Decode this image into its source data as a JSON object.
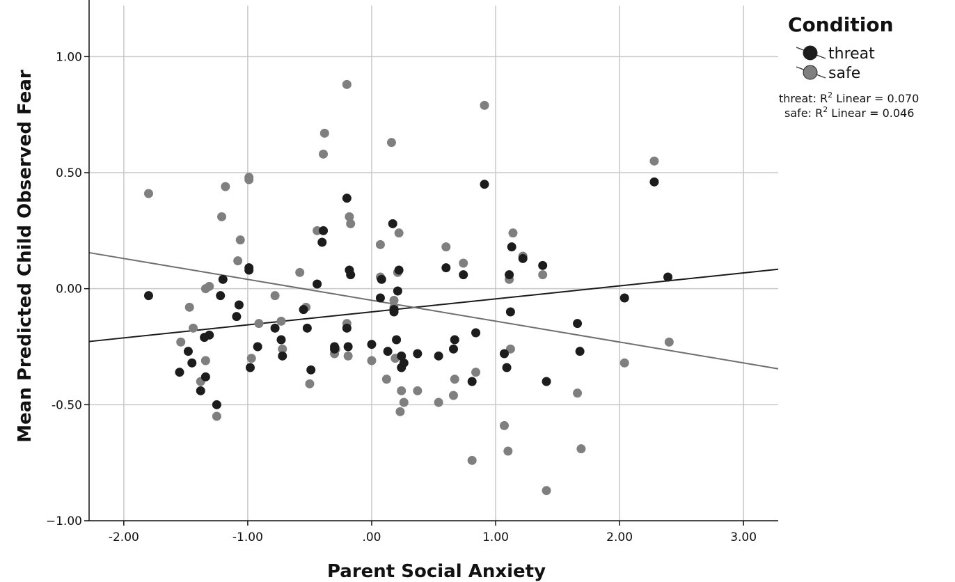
{
  "chart_data": {
    "type": "scatter",
    "title": "",
    "xlabel": "Parent Social Anxiety",
    "ylabel": "Mean Predicted Child Observed Fear",
    "xlim": [
      -2.28,
      3.28
    ],
    "ylim": [
      -1.0,
      1.22
    ],
    "xticks": [
      -2,
      -1,
      0,
      1,
      2,
      3
    ],
    "xtick_labels": [
      "-2.00",
      "-1.00",
      ".00",
      "1.00",
      "2.00",
      "3.00"
    ],
    "yticks": [
      -1,
      -0.5,
      0,
      0.5,
      1
    ],
    "ytick_labels": [
      "−1.00",
      "-0.50",
      "0.00",
      "0.50",
      "1.00"
    ],
    "grid": true,
    "legend": {
      "title": "Condition",
      "placement": "top-right",
      "notes": [
        {
          "series": "threat",
          "prefix": "threat: R",
          "sup": "2",
          "suffix": "  Linear = 0.070"
        },
        {
          "series": "safe",
          "prefix": "safe: R",
          "sup": "2",
          "suffix": "  Linear = 0.046"
        }
      ]
    },
    "series": [
      {
        "name": "threat",
        "color": "#1c1c1c",
        "fit_line": {
          "intercept": -0.1,
          "slope": 0.056
        },
        "points": [
          [
            -1.8,
            -0.03
          ],
          [
            -1.55,
            -0.36
          ],
          [
            -1.48,
            -0.27
          ],
          [
            -1.45,
            -0.32
          ],
          [
            -1.38,
            -0.44
          ],
          [
            -1.35,
            -0.21
          ],
          [
            -1.34,
            -0.38
          ],
          [
            -1.31,
            -0.2
          ],
          [
            -1.25,
            -0.5
          ],
          [
            -1.22,
            -0.03
          ],
          [
            -1.2,
            0.04
          ],
          [
            -1.09,
            -0.12
          ],
          [
            -1.07,
            -0.07
          ],
          [
            -0.99,
            0.09
          ],
          [
            -0.99,
            0.08
          ],
          [
            -0.98,
            -0.34
          ],
          [
            -0.78,
            -0.17
          ],
          [
            -0.73,
            -0.22
          ],
          [
            -0.72,
            -0.29
          ],
          [
            -0.92,
            -0.25
          ],
          [
            -0.55,
            -0.09
          ],
          [
            -0.52,
            -0.17
          ],
          [
            -0.49,
            -0.35
          ],
          [
            -0.44,
            0.02
          ],
          [
            -0.4,
            0.2
          ],
          [
            -0.39,
            0.25
          ],
          [
            -0.3,
            -0.25
          ],
          [
            -0.3,
            -0.26
          ],
          [
            -0.2,
            0.39
          ],
          [
            -0.2,
            -0.17
          ],
          [
            -0.19,
            -0.25
          ],
          [
            -0.18,
            0.08
          ],
          [
            -0.17,
            0.06
          ],
          [
            0.0,
            -0.24
          ],
          [
            0.07,
            -0.04
          ],
          [
            0.08,
            0.04
          ],
          [
            0.13,
            -0.27
          ],
          [
            0.17,
            0.28
          ],
          [
            0.18,
            -0.1
          ],
          [
            0.18,
            -0.09
          ],
          [
            0.2,
            -0.22
          ],
          [
            0.21,
            -0.01
          ],
          [
            0.22,
            0.08
          ],
          [
            0.24,
            -0.34
          ],
          [
            0.24,
            -0.29
          ],
          [
            0.26,
            -0.32
          ],
          [
            0.37,
            -0.28
          ],
          [
            0.54,
            -0.29
          ],
          [
            0.6,
            0.09
          ],
          [
            0.66,
            -0.26
          ],
          [
            0.67,
            -0.22
          ],
          [
            0.74,
            0.06
          ],
          [
            0.81,
            -0.4
          ],
          [
            0.84,
            -0.19
          ],
          [
            0.91,
            0.45
          ],
          [
            1.07,
            -0.28
          ],
          [
            1.09,
            -0.34
          ],
          [
            1.11,
            0.06
          ],
          [
            1.12,
            -0.1
          ],
          [
            1.13,
            0.18
          ],
          [
            1.22,
            0.13
          ],
          [
            1.38,
            0.1
          ],
          [
            1.41,
            -0.4
          ],
          [
            1.66,
            -0.15
          ],
          [
            1.68,
            -0.27
          ],
          [
            2.04,
            -0.04
          ],
          [
            2.28,
            0.46
          ],
          [
            2.39,
            0.05
          ]
        ]
      },
      {
        "name": "safe",
        "color": "#7f7f7f",
        "fit_line": {
          "intercept": -0.05,
          "slope": -0.09
        },
        "points": [
          [
            -1.8,
            0.41
          ],
          [
            -1.54,
            -0.23
          ],
          [
            -1.47,
            -0.08
          ],
          [
            -1.44,
            -0.17
          ],
          [
            -1.38,
            -0.4
          ],
          [
            -1.34,
            0.0
          ],
          [
            -1.34,
            -0.31
          ],
          [
            -1.31,
            0.01
          ],
          [
            -1.25,
            -0.55
          ],
          [
            -1.21,
            0.31
          ],
          [
            -1.18,
            0.44
          ],
          [
            -1.08,
            0.12
          ],
          [
            -1.06,
            0.21
          ],
          [
            -0.99,
            0.48
          ],
          [
            -0.99,
            0.47
          ],
          [
            -0.97,
            -0.3
          ],
          [
            -0.91,
            -0.15
          ],
          [
            -0.78,
            -0.03
          ],
          [
            -0.73,
            -0.14
          ],
          [
            -0.72,
            -0.26
          ],
          [
            -0.58,
            0.07
          ],
          [
            -0.53,
            -0.08
          ],
          [
            -0.5,
            -0.41
          ],
          [
            -0.44,
            0.25
          ],
          [
            -0.39,
            0.58
          ],
          [
            -0.38,
            0.67
          ],
          [
            -0.3,
            -0.28
          ],
          [
            -0.29,
            -0.26
          ],
          [
            -0.2,
            0.88
          ],
          [
            -0.2,
            -0.15
          ],
          [
            -0.19,
            -0.29
          ],
          [
            -0.18,
            0.31
          ],
          [
            -0.17,
            0.28
          ],
          [
            0.0,
            -0.31
          ],
          [
            0.07,
            0.19
          ],
          [
            0.07,
            0.05
          ],
          [
            0.12,
            -0.39
          ],
          [
            0.16,
            0.63
          ],
          [
            0.18,
            -0.08
          ],
          [
            0.18,
            -0.05
          ],
          [
            0.19,
            -0.3
          ],
          [
            0.21,
            0.07
          ],
          [
            0.22,
            0.24
          ],
          [
            0.23,
            -0.53
          ],
          [
            0.24,
            -0.44
          ],
          [
            0.26,
            -0.49
          ],
          [
            0.37,
            -0.44
          ],
          [
            0.54,
            -0.49
          ],
          [
            0.6,
            0.18
          ],
          [
            0.66,
            -0.46
          ],
          [
            0.67,
            -0.39
          ],
          [
            0.74,
            0.11
          ],
          [
            0.81,
            -0.74
          ],
          [
            0.84,
            -0.36
          ],
          [
            0.91,
            0.79
          ],
          [
            1.07,
            -0.59
          ],
          [
            1.1,
            -0.7
          ],
          [
            1.11,
            0.04
          ],
          [
            1.12,
            -0.26
          ],
          [
            1.14,
            0.24
          ],
          [
            1.22,
            0.14
          ],
          [
            1.38,
            0.06
          ],
          [
            1.41,
            -0.87
          ],
          [
            1.66,
            -0.45
          ],
          [
            1.69,
            -0.69
          ],
          [
            2.04,
            -0.32
          ],
          [
            2.28,
            0.55
          ],
          [
            2.4,
            -0.23
          ]
        ]
      }
    ]
  }
}
